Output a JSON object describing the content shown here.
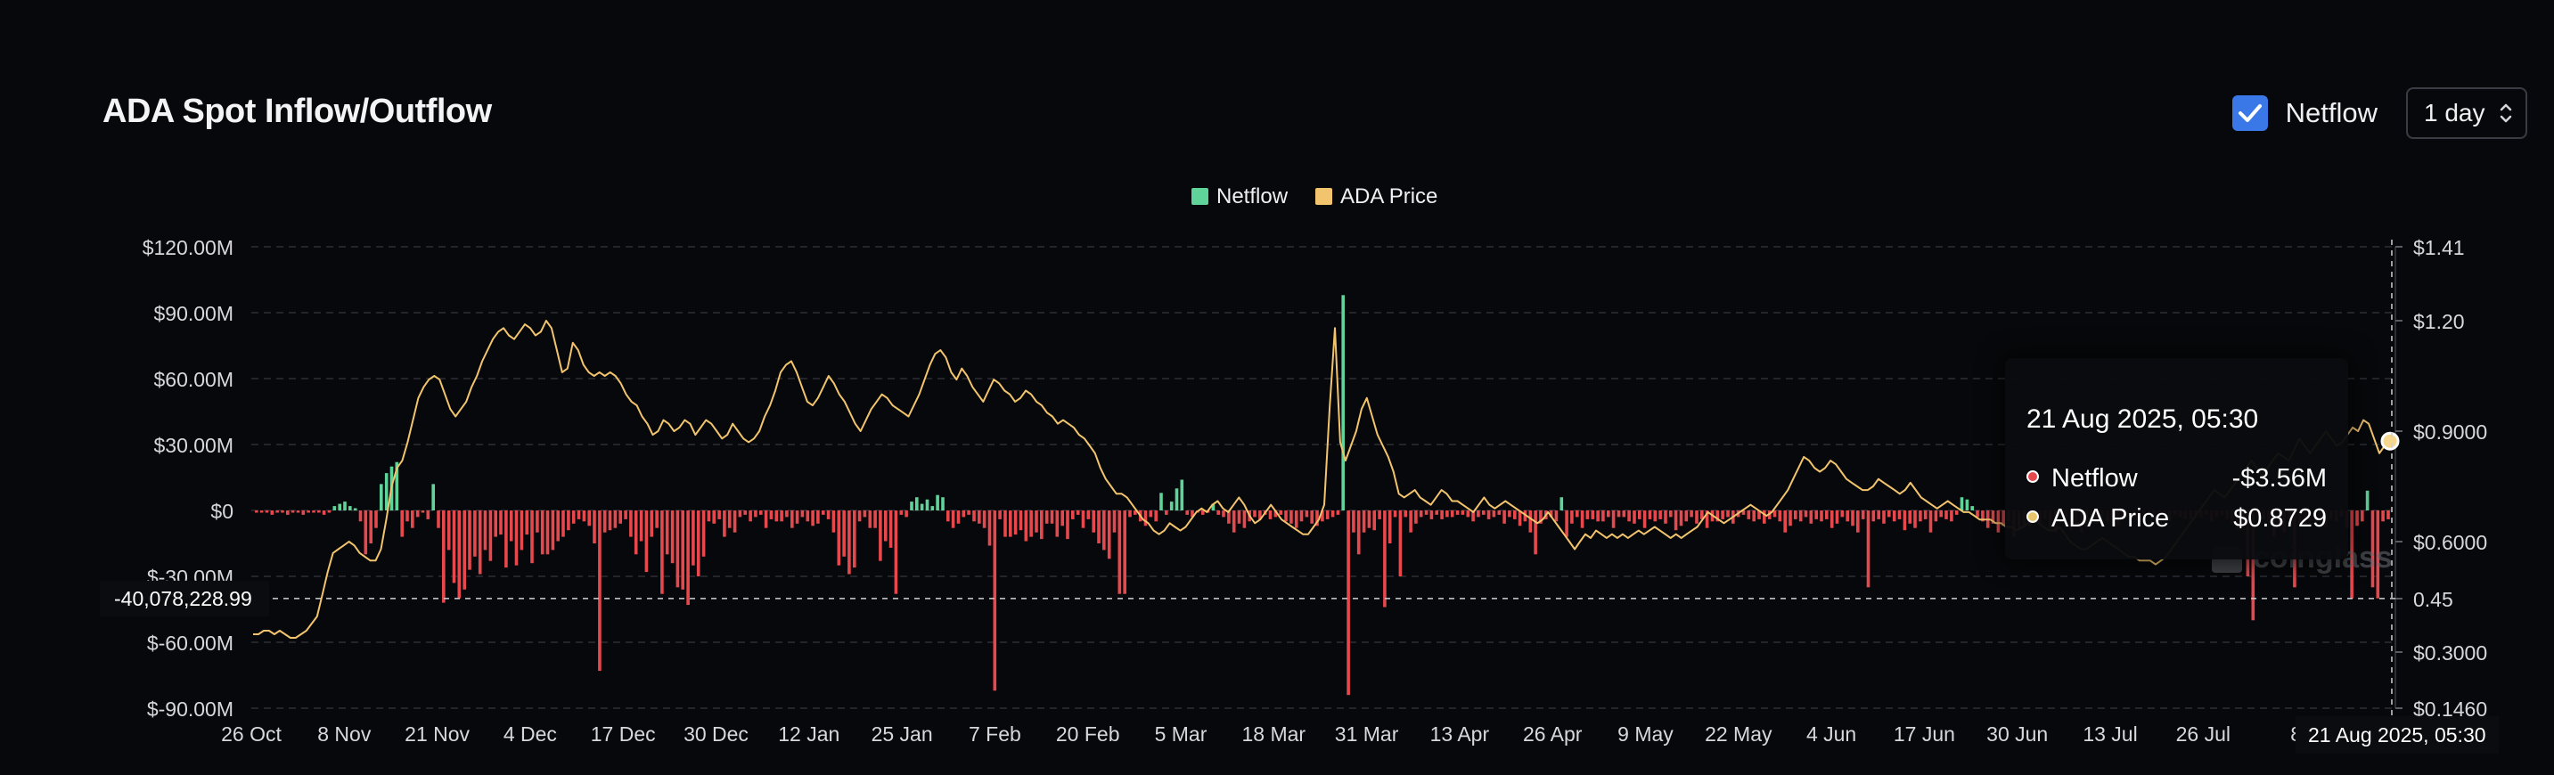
{
  "title": "ADA Spot Inflow/Outflow",
  "controls": {
    "netflow_checkbox_label": "Netflow",
    "interval_value": "1 day",
    "accent": "#3a78e8"
  },
  "tooltip": {
    "date": "21 Aug 2025, 05:30",
    "rows": [
      {
        "name": "Netflow",
        "value": "-$3.56M",
        "color": "#e5484d"
      },
      {
        "name": "ADA Price",
        "value": "$0.8729",
        "color": "#e8c56b"
      }
    ]
  },
  "watermark": "coinglass",
  "chart_data": {
    "type": "bar",
    "legend": [
      {
        "name": "Netflow",
        "color": "#5fd39a"
      },
      {
        "name": "ADA Price",
        "color": "#f2c46d"
      }
    ],
    "legend_position": "top-center",
    "left_axis": {
      "ticks": [
        "$120.00M",
        "$90.00M",
        "$60.00M",
        "$30.00M",
        "$0",
        "$-30.00M",
        "$-60.00M",
        "$-90.00M"
      ],
      "ylim": [
        -90,
        120
      ],
      "unit": "M USD"
    },
    "right_axis": {
      "ticks": [
        {
          "label": "$1.41",
          "value": 1.41
        },
        {
          "label": "$1.20",
          "value": 1.2
        },
        {
          "label": "$0.9000",
          "value": 0.9
        },
        {
          "label": "$0.6000",
          "value": 0.6
        },
        {
          "label": "0.45",
          "value": 0.45
        },
        {
          "label": "$0.3000",
          "value": 0.3
        },
        {
          "label": "$0.1460",
          "value": 0.146
        }
      ]
    },
    "x_ticks": [
      "26 Oct",
      "8 Nov",
      "21 Nov",
      "4 Dec",
      "17 Dec",
      "30 Dec",
      "12 Jan",
      "25 Jan",
      "7 Feb",
      "20 Feb",
      "5 Mar",
      "18 Mar",
      "31 Mar",
      "13 Apr",
      "26 Apr",
      "9 May",
      "22 May",
      "4 Jun",
      "17 Jun",
      "30 Jun",
      "13 Jul",
      "26 Jul",
      "8"
    ],
    "crosshair": {
      "x_label": "21 Aug 2025, 05:30",
      "y_label": "-40,078,228.99",
      "y_value": -40.08
    },
    "grid": true,
    "netflow_series": {
      "name": "Netflow",
      "unit": "M USD",
      "positive_color": "#5fd39a",
      "negative_color": "#e5484d",
      "values": [
        -1,
        -1,
        -1,
        -2,
        -1,
        -1,
        -2,
        -1,
        -1,
        -2,
        -1,
        -1,
        -1,
        -2,
        -1,
        2,
        3,
        4,
        2,
        1,
        -5,
        -20,
        -15,
        -8,
        12,
        17,
        20,
        22,
        -12,
        -5,
        -8,
        -3,
        -1,
        -4,
        12,
        -8,
        -42,
        -18,
        -33,
        -40,
        -36,
        -27,
        -21,
        -29,
        -18,
        -23,
        -12,
        -11,
        -26,
        -14,
        -25,
        -18,
        -11,
        -24,
        -10,
        -20,
        -20,
        -18,
        -14,
        -12,
        -9,
        -6,
        -4,
        -5,
        -7,
        -15,
        -73,
        -10,
        -9,
        -8,
        -6,
        -4,
        -12,
        -20,
        -14,
        -28,
        -12,
        -8,
        -38,
        -20,
        -24,
        -35,
        -36,
        -43,
        -25,
        -30,
        -21,
        -5,
        -6,
        -4,
        -12,
        -8,
        -10,
        -3,
        -2,
        -5,
        -3,
        -2,
        -8,
        -4,
        -5,
        -5,
        -3,
        -8,
        -6,
        -3,
        -5,
        -7,
        -6,
        -2,
        -4,
        -10,
        -25,
        -21,
        -29,
        -26,
        -5,
        -3,
        -8,
        -8,
        -23,
        -14,
        -17,
        -38,
        -2,
        -3,
        4,
        6,
        3,
        5,
        2,
        7,
        6,
        -5,
        -8,
        -6,
        -3,
        -2,
        -5,
        -6,
        -8,
        -16,
        -82,
        -4,
        -12,
        -12,
        -11,
        -9,
        -14,
        -12,
        -10,
        -13,
        -6,
        -6,
        -12,
        -7,
        -13,
        -4,
        -2,
        -8,
        -4,
        -10,
        -15,
        -18,
        -22,
        -10,
        -38,
        -38,
        -3,
        -2,
        -5,
        -7,
        -3,
        -5,
        8,
        -2,
        4,
        10,
        14,
        -2,
        -3,
        -1,
        -2,
        -1,
        3,
        -2,
        -3,
        -6,
        -10,
        -6,
        -8,
        -5,
        -3,
        -4,
        -2,
        -4,
        -3,
        -2,
        -5,
        -6,
        -8,
        -5,
        -3,
        -6,
        -7,
        -5,
        -4,
        -3,
        -2,
        98,
        -84,
        -10,
        -20,
        -10,
        -8,
        -9,
        -4,
        -44,
        -15,
        -3,
        -30,
        -3,
        -10,
        -6,
        -3,
        -2,
        -4,
        -2,
        -4,
        -3,
        -3,
        -2,
        -2,
        -3,
        -5,
        -3,
        -2,
        -4,
        -3,
        -2,
        -6,
        -3,
        -4,
        -7,
        -5,
        -10,
        -20,
        -6,
        -4,
        -3,
        -5,
        6,
        -12,
        -6,
        -3,
        -8,
        -4,
        -4,
        -5,
        -5,
        -3,
        -8,
        -3,
        -3,
        -5,
        -6,
        -4,
        -8,
        -4,
        -5,
        -4,
        -6,
        -3,
        -9,
        -7,
        -5,
        -3,
        -6,
        -4,
        -8,
        -5,
        -5,
        -4,
        -3,
        -6,
        -3,
        -2,
        -4,
        -5,
        -4,
        -6,
        -4,
        -3,
        -5,
        -10,
        -7,
        -4,
        -5,
        -3,
        -6,
        -4,
        -5,
        -4,
        -8,
        -6,
        -3,
        -5,
        -7,
        -10,
        -4,
        -35,
        -5,
        -4,
        -6,
        -3,
        -5,
        -4,
        -9,
        -6,
        -8,
        -5,
        -4,
        -10,
        -5,
        -3,
        -4,
        -5,
        -2,
        6,
        5,
        2,
        -3,
        -5,
        -8,
        -6,
        -10,
        -7,
        -5,
        -12,
        -9,
        -8,
        -7,
        -5,
        -6,
        -4,
        -8,
        -10,
        -5,
        -3,
        -9,
        -7,
        -10,
        -8,
        -4,
        -6,
        -3,
        -5,
        -4,
        -7,
        -3,
        -2,
        -3,
        -5,
        -4,
        -2,
        -4,
        -3,
        -3,
        -5,
        -2,
        -3,
        -4,
        -4,
        -2,
        -3,
        -2,
        -5,
        -3,
        -2,
        -4,
        -6,
        -9,
        -7,
        -30,
        -50,
        -3,
        -4,
        -5,
        -12,
        -6,
        -10,
        -4,
        -35,
        -6,
        -8,
        -5,
        -6,
        -4,
        -8,
        -4,
        -5,
        -3,
        -8,
        -40,
        -7,
        -5,
        9,
        -35,
        -40,
        -5,
        -4
      ]
    },
    "price_series": {
      "name": "ADA Price",
      "unit": "USD",
      "color": "#f2c46d",
      "values": [
        0.35,
        0.35,
        0.36,
        0.36,
        0.35,
        0.36,
        0.35,
        0.34,
        0.34,
        0.35,
        0.36,
        0.38,
        0.4,
        0.46,
        0.52,
        0.57,
        0.58,
        0.59,
        0.6,
        0.59,
        0.57,
        0.56,
        0.55,
        0.55,
        0.58,
        0.66,
        0.75,
        0.8,
        0.82,
        0.87,
        0.93,
        0.99,
        1.02,
        1.04,
        1.05,
        1.04,
        1.0,
        0.96,
        0.94,
        0.96,
        0.98,
        1.02,
        1.05,
        1.09,
        1.12,
        1.15,
        1.17,
        1.18,
        1.16,
        1.15,
        1.17,
        1.19,
        1.18,
        1.16,
        1.17,
        1.2,
        1.18,
        1.12,
        1.06,
        1.07,
        1.14,
        1.12,
        1.08,
        1.06,
        1.05,
        1.06,
        1.05,
        1.06,
        1.05,
        1.03,
        1.0,
        0.98,
        0.97,
        0.94,
        0.92,
        0.89,
        0.9,
        0.93,
        0.92,
        0.9,
        0.91,
        0.93,
        0.92,
        0.89,
        0.91,
        0.93,
        0.92,
        0.9,
        0.88,
        0.89,
        0.92,
        0.9,
        0.88,
        0.87,
        0.88,
        0.9,
        0.94,
        0.97,
        1.01,
        1.06,
        1.08,
        1.09,
        1.06,
        1.02,
        0.98,
        0.97,
        0.99,
        1.02,
        1.05,
        1.03,
        1.0,
        0.98,
        0.95,
        0.92,
        0.9,
        0.93,
        0.96,
        0.98,
        1.0,
        0.99,
        0.97,
        0.96,
        0.95,
        0.94,
        0.97,
        1.0,
        1.04,
        1.08,
        1.11,
        1.12,
        1.1,
        1.06,
        1.04,
        1.07,
        1.05,
        1.02,
        1.0,
        0.98,
        1.01,
        1.04,
        1.03,
        1.01,
        1.0,
        0.98,
        0.99,
        1.01,
        1.0,
        0.98,
        0.97,
        0.95,
        0.94,
        0.92,
        0.93,
        0.92,
        0.91,
        0.89,
        0.88,
        0.86,
        0.84,
        0.8,
        0.77,
        0.75,
        0.73,
        0.73,
        0.72,
        0.7,
        0.68,
        0.66,
        0.65,
        0.63,
        0.62,
        0.63,
        0.65,
        0.64,
        0.63,
        0.64,
        0.66,
        0.68,
        0.69,
        0.68,
        0.7,
        0.71,
        0.69,
        0.68,
        0.7,
        0.72,
        0.7,
        0.67,
        0.65,
        0.66,
        0.68,
        0.7,
        0.68,
        0.66,
        0.65,
        0.64,
        0.63,
        0.62,
        0.62,
        0.64,
        0.66,
        0.7,
        0.96,
        1.18,
        0.87,
        0.82,
        0.86,
        0.9,
        0.96,
        0.99,
        0.94,
        0.89,
        0.86,
        0.83,
        0.79,
        0.73,
        0.72,
        0.73,
        0.74,
        0.72,
        0.71,
        0.7,
        0.72,
        0.74,
        0.73,
        0.71,
        0.71,
        0.7,
        0.69,
        0.68,
        0.7,
        0.72,
        0.7,
        0.69,
        0.7,
        0.71,
        0.7,
        0.69,
        0.68,
        0.67,
        0.66,
        0.65,
        0.66,
        0.68,
        0.66,
        0.64,
        0.62,
        0.6,
        0.58,
        0.6,
        0.62,
        0.61,
        0.63,
        0.62,
        0.61,
        0.62,
        0.61,
        0.62,
        0.61,
        0.62,
        0.63,
        0.62,
        0.63,
        0.64,
        0.63,
        0.62,
        0.61,
        0.62,
        0.61,
        0.62,
        0.63,
        0.64,
        0.66,
        0.68,
        0.67,
        0.66,
        0.65,
        0.66,
        0.67,
        0.68,
        0.69,
        0.7,
        0.69,
        0.68,
        0.67,
        0.68,
        0.7,
        0.72,
        0.74,
        0.77,
        0.8,
        0.83,
        0.82,
        0.8,
        0.79,
        0.8,
        0.82,
        0.81,
        0.79,
        0.77,
        0.76,
        0.75,
        0.74,
        0.74,
        0.75,
        0.77,
        0.76,
        0.75,
        0.74,
        0.73,
        0.74,
        0.76,
        0.74,
        0.72,
        0.71,
        0.7,
        0.69,
        0.7,
        0.71,
        0.7,
        0.69,
        0.68,
        0.68,
        0.67,
        0.66,
        0.66,
        0.66,
        0.65,
        0.65,
        0.64,
        0.64,
        0.63,
        0.64,
        0.65,
        0.66,
        0.65,
        0.64,
        0.63,
        0.63,
        0.64,
        0.62,
        0.6,
        0.59,
        0.58,
        0.58,
        0.59,
        0.6,
        0.61,
        0.6,
        0.59,
        0.58,
        0.57,
        0.56,
        0.56,
        0.55,
        0.55,
        0.55,
        0.54,
        0.55,
        0.56,
        0.58,
        0.6,
        0.62,
        0.64,
        0.66,
        0.68,
        0.7,
        0.72,
        0.74,
        0.73,
        0.72,
        0.74,
        0.76,
        0.78,
        0.8,
        0.82,
        0.8,
        0.78,
        0.8,
        0.82,
        0.84,
        0.83,
        0.82,
        0.85,
        0.88,
        0.86,
        0.84,
        0.86,
        0.88,
        0.9,
        0.88,
        0.86,
        0.87,
        0.89,
        0.91,
        0.9,
        0.93,
        0.92,
        0.88,
        0.84,
        0.86,
        0.8729
      ]
    }
  }
}
